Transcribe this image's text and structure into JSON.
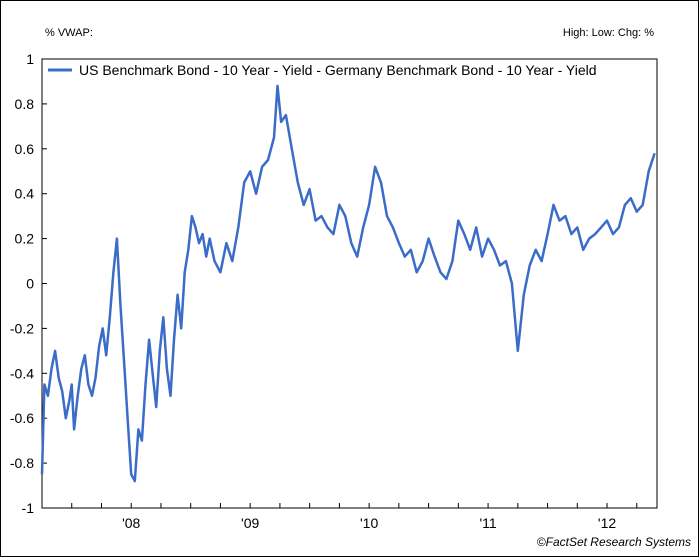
{
  "header": {
    "left": "%  VWAP:",
    "right": "High:  Low:  Chg: %"
  },
  "credit": "©FactSet Research Systems",
  "chart_data": {
    "type": "line",
    "title": "",
    "xlabel": "",
    "ylabel": "",
    "ylim": [
      -1,
      1
    ],
    "yticks": [
      1,
      0.8,
      0.6,
      0.4,
      0.2,
      0,
      -0.2,
      -0.4,
      -0.6,
      -0.8,
      -1
    ],
    "ytick_labels": [
      "1",
      "0.8",
      "0.6",
      "0.4",
      "0.2",
      "0",
      "-0.2",
      "-0.4",
      "-0.6",
      "-0.8",
      "-1"
    ],
    "xlim": [
      2007.75,
      2012.92
    ],
    "xticks": [
      2008,
      2009,
      2010,
      2011,
      2012
    ],
    "xtick_labels": [
      "'08",
      "'09",
      "'10",
      "'11",
      "'12"
    ],
    "grid": false,
    "legend_position": "top",
    "series": [
      {
        "name": "US Benchmark Bond - 10 Year - Yield - Germany Benchmark Bond - 10 Year - Yield",
        "color": "#3a6cc8",
        "x": [
          2007.75,
          2007.77,
          2007.8,
          2007.83,
          2007.86,
          2007.89,
          2007.92,
          2007.95,
          2007.98,
          2008.0,
          2008.02,
          2008.05,
          2008.08,
          2008.11,
          2008.14,
          2008.17,
          2008.2,
          2008.23,
          2008.26,
          2008.29,
          2008.32,
          2008.35,
          2008.38,
          2008.41,
          2008.44,
          2008.47,
          2008.5,
          2008.53,
          2008.56,
          2008.59,
          2008.62,
          2008.65,
          2008.68,
          2008.71,
          2008.74,
          2008.77,
          2008.8,
          2008.83,
          2008.86,
          2008.89,
          2008.92,
          2008.95,
          2008.98,
          2009.01,
          2009.04,
          2009.07,
          2009.1,
          2009.13,
          2009.16,
          2009.2,
          2009.25,
          2009.3,
          2009.35,
          2009.4,
          2009.45,
          2009.5,
          2009.55,
          2009.6,
          2009.65,
          2009.7,
          2009.73,
          2009.76,
          2009.8,
          2009.85,
          2009.9,
          2009.95,
          2010.0,
          2010.05,
          2010.1,
          2010.15,
          2010.2,
          2010.25,
          2010.3,
          2010.35,
          2010.4,
          2010.45,
          2010.5,
          2010.55,
          2010.6,
          2010.65,
          2010.7,
          2010.75,
          2010.8,
          2010.85,
          2010.9,
          2010.95,
          2011.0,
          2011.05,
          2011.1,
          2011.15,
          2011.2,
          2011.25,
          2011.3,
          2011.35,
          2011.4,
          2011.45,
          2011.5,
          2011.55,
          2011.6,
          2011.65,
          2011.7,
          2011.75,
          2011.8,
          2011.85,
          2011.9,
          2011.95,
          2012.0,
          2012.05,
          2012.1,
          2012.15,
          2012.2,
          2012.25,
          2012.3,
          2012.35,
          2012.4,
          2012.45,
          2012.5,
          2012.55,
          2012.6,
          2012.65,
          2012.7,
          2012.75,
          2012.8,
          2012.85,
          2012.9
        ],
        "values": [
          -0.85,
          -0.45,
          -0.5,
          -0.38,
          -0.3,
          -0.42,
          -0.48,
          -0.6,
          -0.52,
          -0.45,
          -0.65,
          -0.5,
          -0.38,
          -0.32,
          -0.45,
          -0.5,
          -0.42,
          -0.28,
          -0.2,
          -0.32,
          -0.15,
          0.05,
          0.2,
          -0.1,
          -0.35,
          -0.6,
          -0.85,
          -0.88,
          -0.65,
          -0.7,
          -0.45,
          -0.25,
          -0.4,
          -0.55,
          -0.3,
          -0.15,
          -0.38,
          -0.5,
          -0.25,
          -0.05,
          -0.2,
          0.05,
          0.15,
          0.3,
          0.25,
          0.18,
          0.22,
          0.12,
          0.2,
          0.1,
          0.05,
          0.18,
          0.1,
          0.25,
          0.45,
          0.5,
          0.4,
          0.52,
          0.55,
          0.65,
          0.88,
          0.72,
          0.75,
          0.6,
          0.45,
          0.35,
          0.42,
          0.28,
          0.3,
          0.25,
          0.22,
          0.35,
          0.3,
          0.18,
          0.12,
          0.25,
          0.35,
          0.52,
          0.45,
          0.3,
          0.25,
          0.18,
          0.12,
          0.15,
          0.05,
          0.1,
          0.2,
          0.12,
          0.05,
          0.02,
          0.1,
          0.28,
          0.22,
          0.15,
          0.25,
          0.12,
          0.2,
          0.15,
          0.08,
          0.1,
          0.0,
          -0.3,
          -0.05,
          0.08,
          0.15,
          0.1,
          0.22,
          0.35,
          0.28,
          0.3,
          0.22,
          0.25,
          0.15,
          0.2,
          0.22,
          0.25,
          0.28,
          0.22,
          0.25,
          0.35,
          0.38,
          0.32,
          0.35,
          0.5,
          0.58
        ]
      }
    ]
  }
}
